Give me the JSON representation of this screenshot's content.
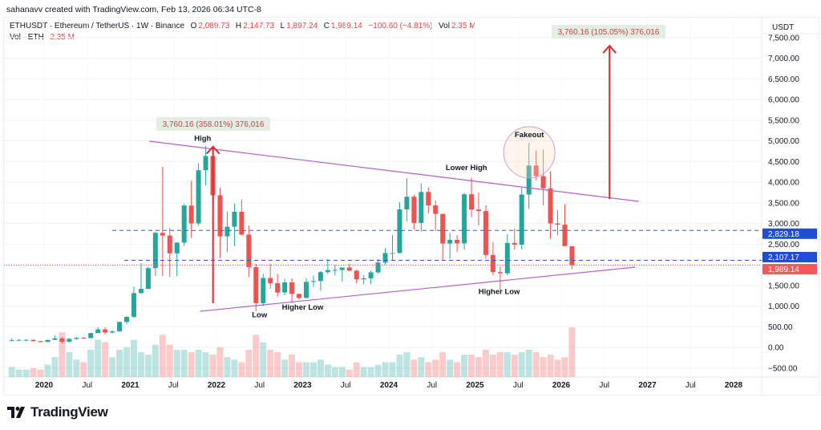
{
  "credit": "sahanavv created with TradingView.com, Feb 13, 2026 06:34 UTC-8",
  "legend": {
    "symbol": "ETHUSDT · Ethereum / TetherUS · 1W · Binance",
    "open_label": "O",
    "open": "2,089.73",
    "high_label": "H",
    "high": "2,147.73",
    "low_label": "L",
    "low": "1,897.24",
    "close_label": "C",
    "close": "1,989.14",
    "change": "−100.60 (−4.81%)",
    "vol_label": "Vol",
    "vol": "2.35 M",
    "vol_series_label": "Vol · ETH",
    "vol_series_value": "2.35 M"
  },
  "brand": {
    "name": "TradingView"
  },
  "colors": {
    "up": "#26a69a",
    "down": "#ef5350",
    "trendline": "#b45fc9",
    "hline": "#2a5bd7",
    "arrow": "#e0282e",
    "last_price": "#f05a5a",
    "hline_badge": "#1e4fd0"
  },
  "chart_data": {
    "type": "candlestick",
    "symbol": "ETHUSDT",
    "timeframe": "1W",
    "y_axis_unit": "USDT",
    "ylim": [
      -500,
      7700
    ],
    "y_ticks": [
      "7,500.00",
      "7,000.00",
      "6,500.00",
      "6,000.00",
      "5,500.00",
      "5,000.00",
      "4,500.00",
      "4,000.00",
      "3,500.00",
      "3,000.00",
      "2,500.00",
      "1,500.00",
      "1,000.00",
      "500.00",
      "0.00",
      "−500.00"
    ],
    "y_tick_values": [
      7500,
      7000,
      6500,
      6000,
      5500,
      5000,
      4500,
      4000,
      3500,
      3000,
      2500,
      1500,
      1000,
      500,
      0,
      -500
    ],
    "x_ticks": [
      "2020",
      "Jul",
      "2021",
      "Jul",
      "2022",
      "Jul",
      "2023",
      "Jul",
      "2024",
      "Jul",
      "2025",
      "Jul",
      "2026",
      "Jul",
      "2027",
      "Jul",
      "2028"
    ],
    "x_tick_dates": [
      2020,
      2020.5,
      2021,
      2021.5,
      2022,
      2022.5,
      2023,
      2023.5,
      2024,
      2024.5,
      2025,
      2025.5,
      2026,
      2026.5,
      2027,
      2027.5,
      2028
    ],
    "xlim": [
      2019.55,
      2028.35
    ],
    "series_start": "2019-08",
    "monthly_close": [
      172,
      180,
      182,
      152,
      130,
      180,
      218,
      133,
      206,
      231,
      225,
      345,
      435,
      360,
      386,
      615,
      737,
      1314,
      1416,
      1918,
      2773,
      2707,
      2275,
      2536,
      3433,
      3001,
      4288,
      4631,
      3682,
      2688,
      2920,
      3283,
      2728,
      1942,
      1070,
      1679,
      1553,
      1328,
      1572,
      1295,
      1196,
      1585,
      1606,
      1822,
      1870,
      1874,
      1934,
      1857,
      1646,
      1671,
      1815,
      2052,
      2282,
      2283,
      3340,
      3646,
      3012,
      3761,
      3436,
      3231,
      2513,
      2602,
      2518,
      3705,
      3337,
      3300,
      2237,
      1823,
      1793,
      2528,
      2486,
      3698,
      4400,
      4145,
      3850,
      3000,
      2970,
      2450,
      1989.14
    ],
    "monthly_high": [
      220,
      200,
      197,
      190,
      150,
      185,
      288,
      250,
      228,
      250,
      250,
      350,
      490,
      490,
      415,
      620,
      755,
      1470,
      2040,
      1950,
      2800,
      4370,
      2890,
      2550,
      3470,
      4030,
      4460,
      4870,
      4780,
      3860,
      3290,
      3480,
      3580,
      2950,
      2020,
      1780,
      2030,
      1785,
      1660,
      1670,
      1300,
      1680,
      1740,
      1850,
      2140,
      2000,
      1930,
      2030,
      1880,
      1750,
      1860,
      2140,
      2400,
      2720,
      3520,
      4090,
      3700,
      3970,
      3870,
      3560,
      2850,
      2770,
      2720,
      3740,
      4110,
      3745,
      3440,
      2550,
      1960,
      2740,
      2880,
      3860,
      4950,
      4770,
      4790,
      4260,
      3320,
      3470,
      2150
    ],
    "monthly_low": [
      160,
      165,
      157,
      140,
      117,
      128,
      176,
      86,
      130,
      180,
      215,
      220,
      350,
      310,
      335,
      385,
      560,
      715,
      1290,
      1410,
      1730,
      1720,
      1700,
      1720,
      2450,
      2650,
      2950,
      3920,
      3540,
      2160,
      2300,
      2450,
      2710,
      1700,
      880,
      1000,
      1420,
      1225,
      1260,
      1075,
      1160,
      1190,
      1460,
      1370,
      1780,
      1740,
      1600,
      1840,
      1550,
      1530,
      1530,
      1780,
      2000,
      2100,
      2270,
      3050,
      2850,
      2800,
      3240,
      2810,
      2110,
      2150,
      2310,
      2370,
      3150,
      2950,
      2150,
      1750,
      1385,
      1750,
      2370,
      2370,
      3350,
      4040,
      3440,
      2630,
      2710,
      2600,
      1897
    ],
    "monthly_volume_relative": [
      0.2,
      0.15,
      0.15,
      0.18,
      0.15,
      0.25,
      0.4,
      0.9,
      0.5,
      0.35,
      0.3,
      0.55,
      0.75,
      0.7,
      0.4,
      0.55,
      0.6,
      0.75,
      0.5,
      0.45,
      0.65,
      0.85,
      0.65,
      0.55,
      0.55,
      0.5,
      0.55,
      0.5,
      0.45,
      0.6,
      0.4,
      0.35,
      0.3,
      0.55,
      0.85,
      0.7,
      0.55,
      0.5,
      0.35,
      0.45,
      0.3,
      0.3,
      0.3,
      0.35,
      0.25,
      0.2,
      0.2,
      0.15,
      0.3,
      0.2,
      0.2,
      0.25,
      0.3,
      0.3,
      0.45,
      0.5,
      0.35,
      0.4,
      0.3,
      0.35,
      0.5,
      0.35,
      0.3,
      0.45,
      0.45,
      0.4,
      0.55,
      0.45,
      0.5,
      0.5,
      0.45,
      0.5,
      0.55,
      0.5,
      0.4,
      0.45,
      0.35,
      0.4,
      1.0
    ],
    "price_lines": [
      {
        "price": 2829.18,
        "label": "2,829.18",
        "style": "dashed"
      },
      {
        "price": 2107.17,
        "label": "2,107.17",
        "style": "dashed"
      },
      {
        "price": 1989.14,
        "label": "1,989.14",
        "style": "dotted",
        "last_price": true
      }
    ],
    "trendlines": [
      {
        "name": "upper",
        "from": [
          2021.22,
          4990
        ],
        "to": [
          2026.9,
          3534
        ]
      },
      {
        "name": "lower",
        "from": [
          2021.81,
          874
        ],
        "to": [
          2026.86,
          1942
        ]
      }
    ],
    "measure_arrows": [
      {
        "x": 2021.96,
        "from_price": 1068,
        "to_price": 4860,
        "label": "3,760.16 (358.01%) 376,016"
      },
      {
        "x": 2026.56,
        "from_price": 3592,
        "to_price": 7300,
        "label": "3,760.16 (105.05%) 376,016"
      }
    ],
    "annotations": [
      {
        "text": "High",
        "x": 2021.84,
        "price": 5000
      },
      {
        "text": "Low",
        "x": 2022.5,
        "price": 730
      },
      {
        "text": "Higher Low",
        "x": 2023.0,
        "price": 910
      },
      {
        "text": "Lower High",
        "x": 2024.9,
        "price": 4290
      },
      {
        "text": "Fakeout",
        "x": 2025.63,
        "price": 5090
      },
      {
        "text": "Higher Low",
        "x": 2025.28,
        "price": 1290
      }
    ],
    "highlight_circle": {
      "x": 2025.63,
      "price": 4720,
      "label": "Fakeout"
    }
  }
}
